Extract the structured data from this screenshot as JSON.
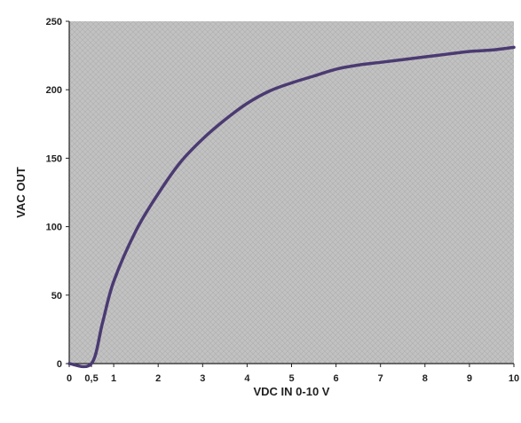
{
  "chart_data": {
    "type": "line",
    "title": "",
    "xlabel": "VDC IN 0-10 V",
    "ylabel": "VAC OUT",
    "xlim": [
      0,
      10
    ],
    "ylim": [
      0,
      250
    ],
    "x_ticks": [
      {
        "value": 0,
        "label": "0"
      },
      {
        "value": 0.5,
        "label": "0,5"
      },
      {
        "value": 1,
        "label": "1"
      },
      {
        "value": 2,
        "label": "2"
      },
      {
        "value": 3,
        "label": "3"
      },
      {
        "value": 4,
        "label": "4"
      },
      {
        "value": 5,
        "label": "5"
      },
      {
        "value": 6,
        "label": "6"
      },
      {
        "value": 7,
        "label": "7"
      },
      {
        "value": 8,
        "label": "8"
      },
      {
        "value": 9,
        "label": "9"
      },
      {
        "value": 10,
        "label": "10"
      }
    ],
    "y_ticks": [
      {
        "value": 0,
        "label": "0"
      },
      {
        "value": 50,
        "label": "50"
      },
      {
        "value": 100,
        "label": "100"
      },
      {
        "value": 150,
        "label": "150"
      },
      {
        "value": 200,
        "label": "200"
      },
      {
        "value": 250,
        "label": "250"
      }
    ],
    "grid": false,
    "series": [
      {
        "x": [
          0,
          0.5,
          0.75,
          1,
          1.5,
          2,
          2.5,
          3,
          3.5,
          4,
          4.5,
          5,
          5.5,
          6,
          6.5,
          7,
          7.5,
          8,
          8.5,
          9,
          9.5,
          10
        ],
        "y": [
          0,
          0,
          30,
          60,
          97,
          124,
          147,
          164,
          178,
          190,
          199,
          205,
          210,
          215,
          218,
          220,
          222,
          224,
          226,
          228,
          229,
          231
        ],
        "color": "#4b3a72"
      }
    ],
    "colors": {
      "plot_background": "#c2c2c2",
      "axis": "#222222"
    }
  }
}
